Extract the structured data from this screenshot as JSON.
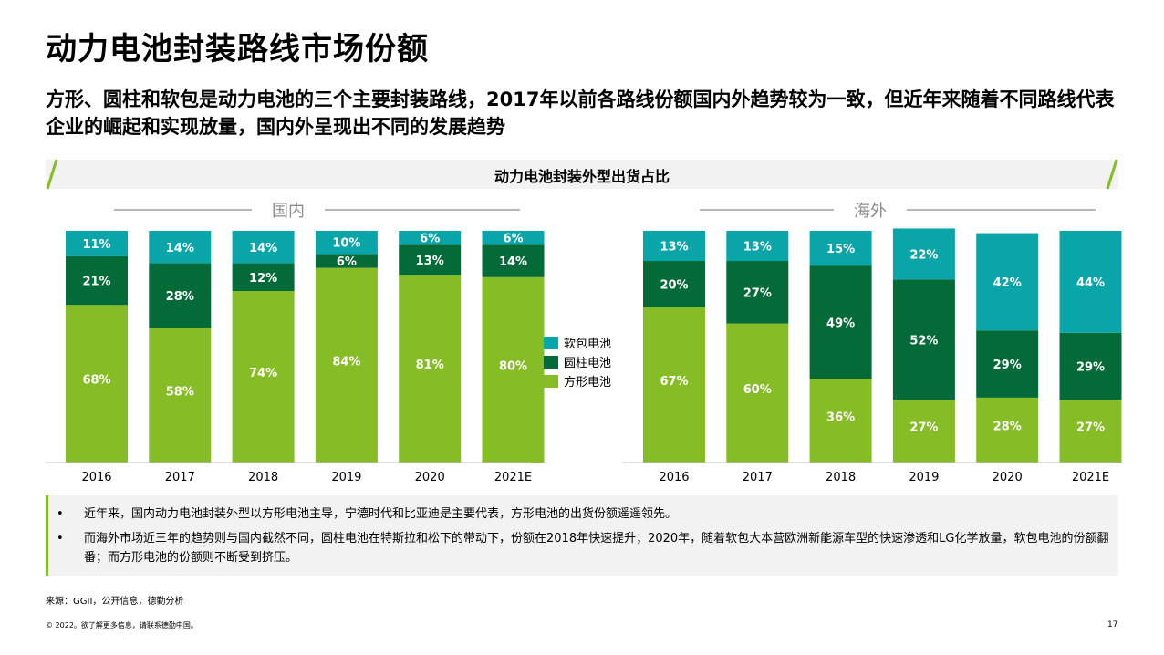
{
  "title": "动力电池封装路线市场份额",
  "subtitle": "方形、圆柱和软包是动力电池的三个主要封装路线，2017年以前各路线份额国内外趋势较为一致，但近年来随着不同路线代表企业的崛起和实现放量，国内外呈现出不同的发展趋势",
  "section_label": "动力电池封装外型出货占比",
  "colors": {
    "soft": "#0aa5a9",
    "cylinder": "#046a38",
    "prism": "#86bc25",
    "accent": "#86bc25"
  },
  "bullets": [
    {
      "marker": "•",
      "text": "近年来，国内动力电池封装外型以方形电池主导，宁德时代和比亚迪是主要代表，方形电池的出货份额遥遥领先。"
    },
    {
      "marker": "•",
      "text": "而海外市场近三年的趋势则与国内截然不同，圆柱电池在特斯拉和松下的带动下，份额在2018年快速提升；2020年，随着软包大本营欧洲新能源车型的快速渗透和LG化学放量，软包电池的份额翻番；而方形电池的份额则不断受到挤压。"
    }
  ],
  "source": "来源：GGII，公开信息，德勤分析",
  "footer": "© 2022。欲了解更多信息，请联系德勤中国。",
  "page_number": "17",
  "chart_data": [
    {
      "type": "bar",
      "stacked": true,
      "title": "国内",
      "categories": [
        "2016",
        "2017",
        "2018",
        "2019",
        "2020",
        "2021E"
      ],
      "ylim": [
        0,
        100
      ],
      "series": [
        {
          "name": "方形电池",
          "key": "prism",
          "values": [
            68,
            58,
            74,
            84,
            81,
            80
          ],
          "labels": [
            "68%",
            "58%",
            "74%",
            "84%",
            "81%",
            "80%"
          ]
        },
        {
          "name": "圆柱电池",
          "key": "cylinder",
          "values": [
            21,
            28,
            12,
            6,
            13,
            14
          ],
          "labels": [
            "21%",
            "28%",
            "12%",
            "6%",
            "13%",
            "14%"
          ]
        },
        {
          "name": "软包电池",
          "key": "soft",
          "values": [
            11,
            14,
            14,
            10,
            6,
            6
          ],
          "labels": [
            "11%",
            "14%",
            "14%",
            "10%",
            "6%",
            "6%"
          ]
        }
      ]
    },
    {
      "type": "bar",
      "stacked": true,
      "title": "海外",
      "categories": [
        "2016",
        "2017",
        "2018",
        "2019",
        "2020",
        "2021E"
      ],
      "ylim": [
        0,
        100
      ],
      "series": [
        {
          "name": "方形电池",
          "key": "prism",
          "values": [
            67,
            60,
            36,
            27,
            28,
            27
          ],
          "labels": [
            "67%",
            "60%",
            "36%",
            "27%",
            "28%",
            "27%"
          ]
        },
        {
          "name": "圆柱电池",
          "key": "cylinder",
          "values": [
            20,
            27,
            49,
            52,
            29,
            29
          ],
          "labels": [
            "20%",
            "27%",
            "49%",
            "52%",
            "29%",
            "29%"
          ]
        },
        {
          "name": "软包电池",
          "key": "soft",
          "values": [
            13,
            13,
            15,
            22,
            42,
            44
          ],
          "labels": [
            "13%",
            "13%",
            "15%",
            "22%",
            "42%",
            "44%"
          ]
        }
      ]
    }
  ],
  "legend": [
    {
      "label": "软包电池",
      "key": "soft"
    },
    {
      "label": "圆柱电池",
      "key": "cylinder"
    },
    {
      "label": "方形电池",
      "key": "prism"
    }
  ]
}
